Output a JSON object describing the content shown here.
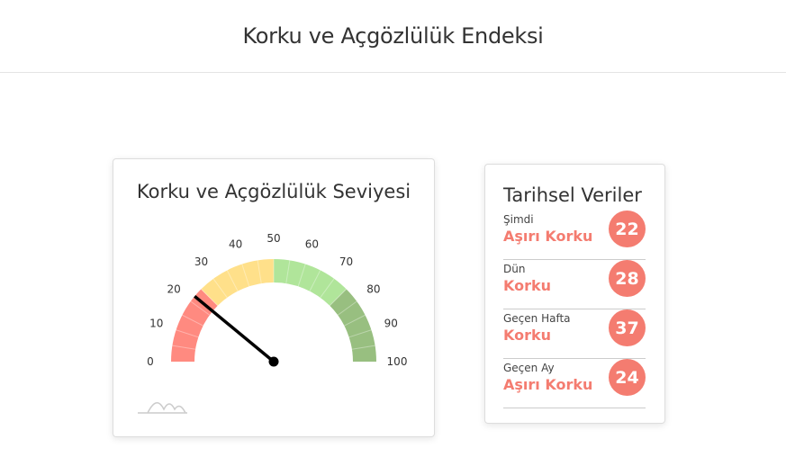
{
  "page_title": "Korku ve Açgözlülük Endeksi",
  "gauge_card": {
    "title": "Korku ve Açgözlülük Seviyesi",
    "value": 22,
    "min": 0,
    "max": 100,
    "ticks": [
      0,
      10,
      20,
      30,
      40,
      50,
      60,
      70,
      80,
      90,
      100
    ],
    "bands": [
      {
        "from": 0,
        "to": 25,
        "color": "#ff8a80"
      },
      {
        "from": 25,
        "to": 50,
        "color": "#ffe08a"
      },
      {
        "from": 50,
        "to": 75,
        "color": "#b0e59a"
      },
      {
        "from": 75,
        "to": 100,
        "color": "#98bf80"
      }
    ],
    "logo_icon": "chart-logo-icon"
  },
  "history": {
    "title": "Tarihsel Veriler",
    "accent": "#f47c70",
    "items": [
      {
        "label": "Şimdi",
        "status": "Aşırı Korku",
        "value": "22"
      },
      {
        "label": "Dün",
        "status": "Korku",
        "value": "28"
      },
      {
        "label": "Geçen Hafta",
        "status": "Korku",
        "value": "37"
      },
      {
        "label": "Geçen Ay",
        "status": "Aşırı Korku",
        "value": "24"
      }
    ]
  }
}
